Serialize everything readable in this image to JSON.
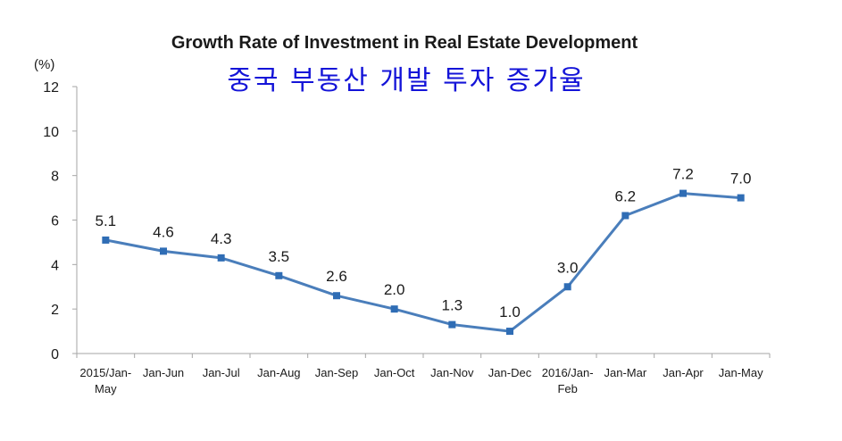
{
  "chart_data": {
    "type": "line",
    "title": "Growth Rate of Investment in Real Estate Development",
    "subtitle": "중국 부동산 개발 투자 증가율",
    "unit_label": "(%)",
    "ylim": [
      0,
      12
    ],
    "yticks": [
      "0",
      "2",
      "4",
      "6",
      "8",
      "10",
      "12"
    ],
    "grid": false,
    "categories": [
      [
        "2015/Jan-",
        "May"
      ],
      [
        "Jan-Jun"
      ],
      [
        "Jan-Jul"
      ],
      [
        "Jan-Aug"
      ],
      [
        "Jan-Sep"
      ],
      [
        "Jan-Oct"
      ],
      [
        "Jan-Nov"
      ],
      [
        "Jan-Dec"
      ],
      [
        "2016/Jan-",
        "Feb"
      ],
      [
        "Jan-Mar"
      ],
      [
        "Jan-Apr"
      ],
      [
        "Jan-May"
      ]
    ],
    "values": [
      5.1,
      4.6,
      4.3,
      3.5,
      2.6,
      2.0,
      1.3,
      1.0,
      3.0,
      6.2,
      7.2,
      7.0
    ],
    "value_labels": [
      "5.1",
      "4.6",
      "4.3",
      "3.5",
      "2.6",
      "2.0",
      "1.3",
      "1.0",
      "3.0",
      "6.2",
      "7.2",
      "7.0"
    ],
    "colors": {
      "line": "#4a7ebb",
      "marker": "#2f6db5",
      "subtitle": "#1414d8"
    }
  }
}
